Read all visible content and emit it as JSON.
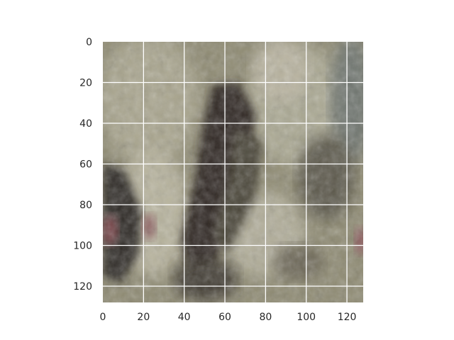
{
  "figure": {
    "x_tick_labels": [
      "0",
      "20",
      "40",
      "60",
      "80",
      "100",
      "120"
    ],
    "y_tick_labels": [
      "0",
      "20",
      "40",
      "60",
      "80",
      "100",
      "120"
    ],
    "x_ticks": [
      0,
      20,
      40,
      60,
      80,
      100,
      120
    ],
    "y_ticks": [
      0,
      20,
      40,
      60,
      80,
      100,
      120
    ],
    "extent": [
      128,
      128
    ],
    "grid": true,
    "grid_color": "#ffffff",
    "image_palette": {
      "base": "#8e8a72",
      "light_stone": "#b7b39d",
      "dark_crevice": "#2d2824",
      "shadow": "#4a4439",
      "reddish_spot": "#7c4a4e",
      "blue_gray": "#6f7670"
    }
  }
}
